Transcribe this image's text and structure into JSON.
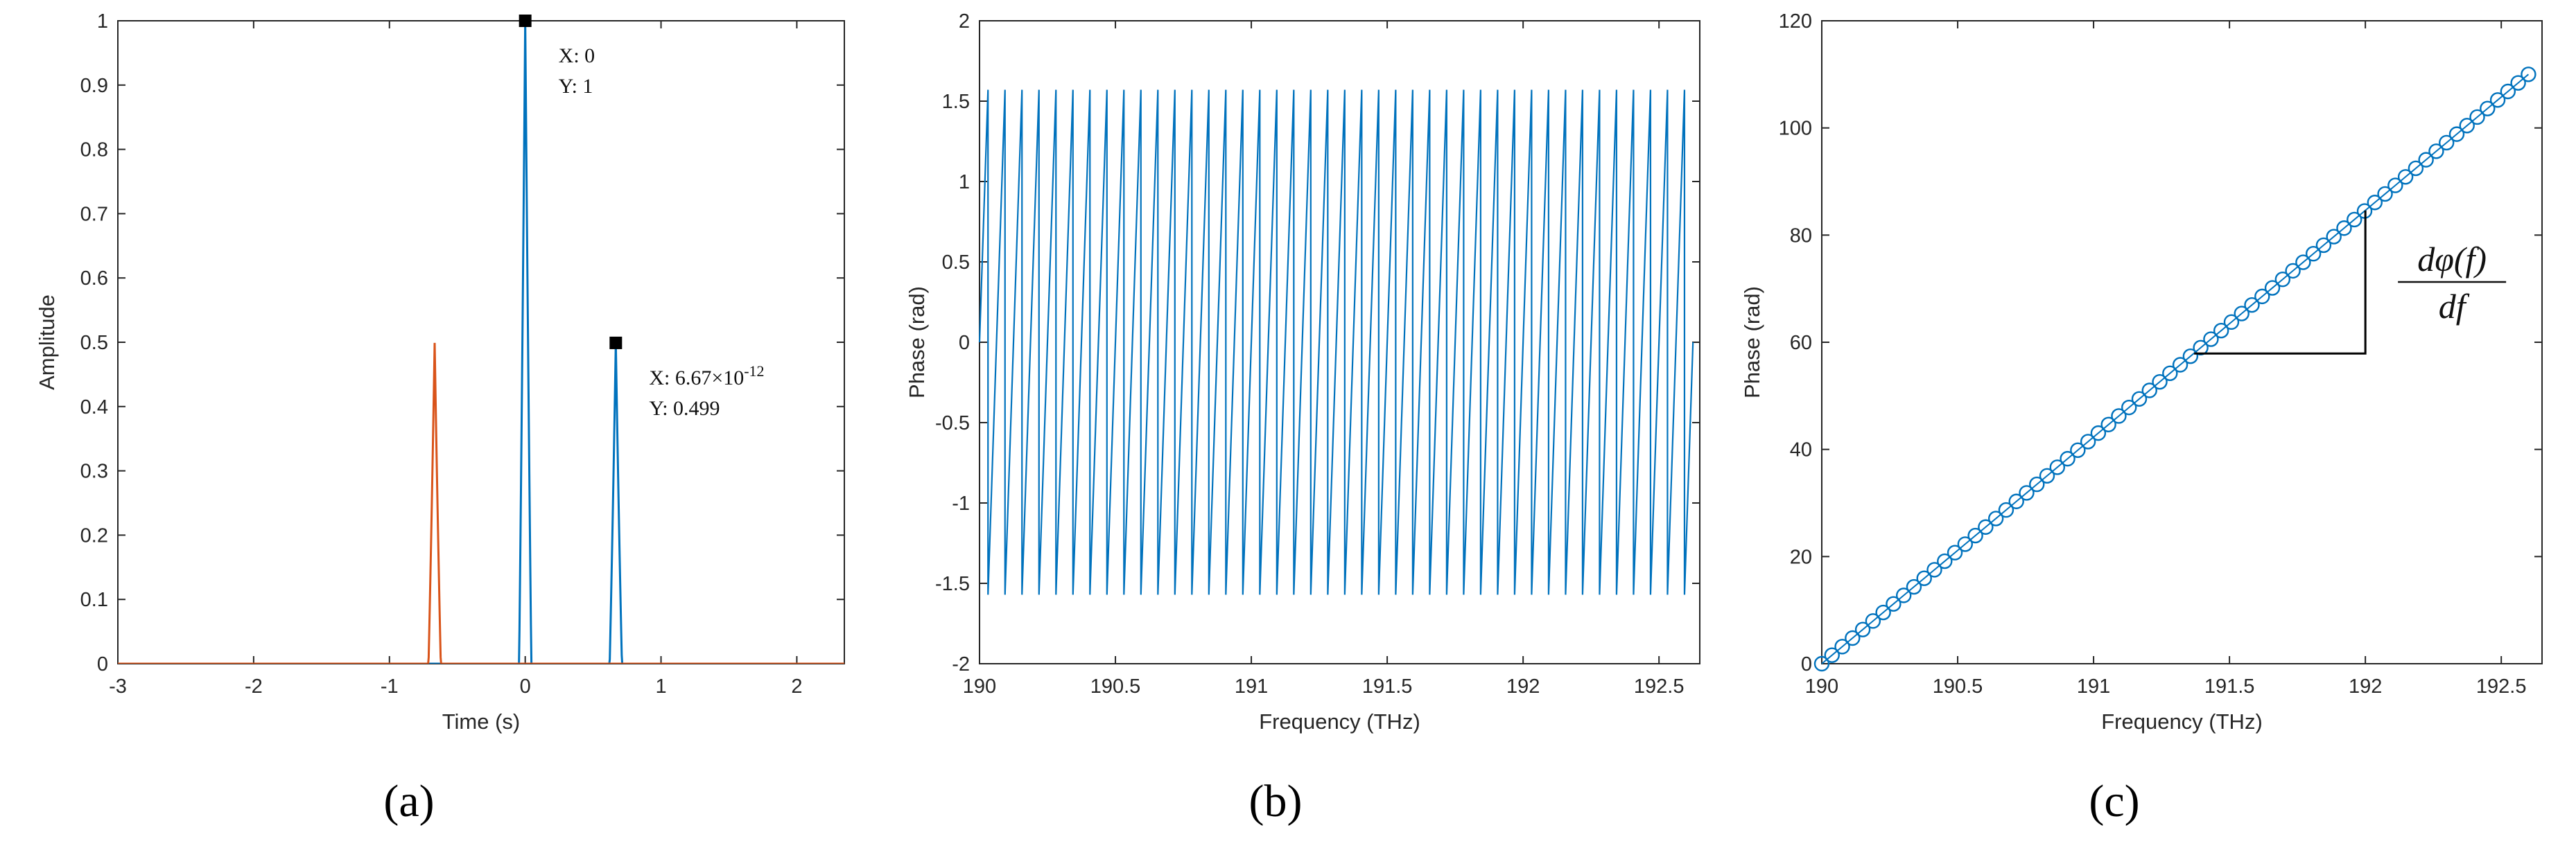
{
  "chart_data": [
    {
      "type": "line",
      "panel_label": "(a)",
      "xlabel": "Time (s)",
      "ylabel": "Amplitude",
      "xlim": [
        -3,
        2.35
      ],
      "ylim": [
        0,
        1
      ],
      "xticks": [
        "-3",
        "-2",
        "-1",
        "0",
        "1",
        "2"
      ],
      "yticks": [
        "0",
        "0.1",
        "0.2",
        "0.3",
        "0.4",
        "0.5",
        "0.6",
        "0.7",
        "0.8",
        "0.9",
        "1"
      ],
      "series": [
        {
          "color": "#0072BD",
          "pulses": [
            {
              "center": 0,
              "peak": 1,
              "halfwidth": 0.045
            },
            {
              "center": 0.667,
              "peak": 0.499,
              "halfwidth": 0.045
            }
          ]
        },
        {
          "color": "#D95319",
          "pulses": [
            {
              "center": -0.667,
              "peak": 0.499,
              "halfwidth": 0.045
            }
          ]
        }
      ],
      "datatips": [
        {
          "x": 0,
          "y": 1,
          "x_label": "X: 0",
          "y_label": "Y: 1"
        },
        {
          "x": 0.667,
          "y": 0.499,
          "x_label": "X: 6.67×10",
          "x_exp": "-12",
          "y_label": "Y: 0.499"
        }
      ]
    },
    {
      "type": "line",
      "panel_label": "(b)",
      "xlabel": "Frequency (THz)",
      "ylabel": "Phase (rad)",
      "xlim": [
        190,
        192.65
      ],
      "ylim": [
        -2,
        2
      ],
      "xticks": [
        "190",
        "190.5",
        "191",
        "191.5",
        "192",
        "192.5"
      ],
      "yticks": [
        "-2",
        "-1.5",
        "-1",
        "-0.5",
        "0",
        "0.5",
        "1",
        "1.5",
        "2"
      ],
      "series": [
        {
          "color": "#0072BD",
          "wrap_period_thz": 0.0625,
          "amplitude": 1.5708,
          "x_start": 190,
          "x_end": 192.625
        }
      ]
    },
    {
      "type": "scatter",
      "panel_label": "(c)",
      "xlabel": "Frequency (THz)",
      "ylabel": "Phase (rad)",
      "xlim": [
        190,
        192.65
      ],
      "ylim": [
        0,
        120
      ],
      "xticks": [
        "190",
        "190.5",
        "191",
        "191.5",
        "192",
        "192.5"
      ],
      "yticks": [
        "0",
        "20",
        "40",
        "60",
        "80",
        "100",
        "120"
      ],
      "series": [
        {
          "color": "#0072BD",
          "x_start": 190,
          "x_end": 192.6,
          "y_start": 0,
          "y_end": 110,
          "points": 70
        }
      ],
      "annotation": {
        "x1": 191.37,
        "x2": 192.0,
        "y1": 57.9,
        "y2": 84.6,
        "numerator": "dφ(f)",
        "denominator": "df"
      }
    }
  ]
}
